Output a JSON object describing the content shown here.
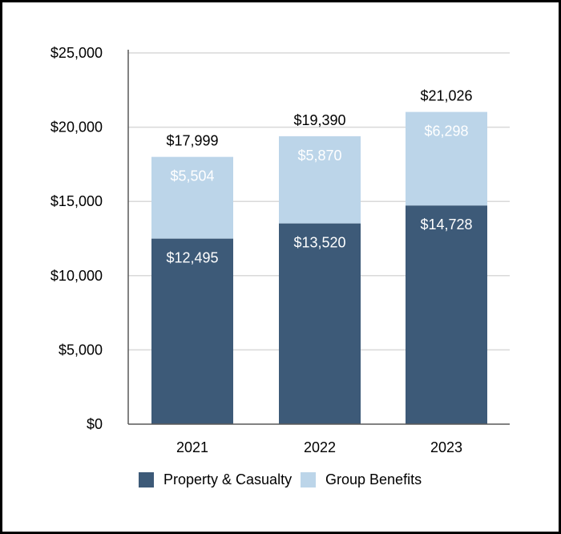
{
  "chart_data": {
    "type": "bar",
    "stacked": true,
    "categories": [
      "2021",
      "2022",
      "2023"
    ],
    "series": [
      {
        "name": "Property & Casualty",
        "values": [
          12495,
          13520,
          14728
        ],
        "labels": [
          "$12,495",
          "$13,520",
          "$14,728"
        ],
        "color": "#3d5a78",
        "label_color": "#ffffff"
      },
      {
        "name": "Group Benefits",
        "values": [
          5504,
          5870,
          6298
        ],
        "labels": [
          "$5,504",
          "$5,870",
          "$6,298"
        ],
        "color": "#bcd5e9",
        "label_color": "#ffffff"
      }
    ],
    "totals": [
      17999,
      19390,
      21026
    ],
    "total_labels": [
      "$17,999",
      "$19,390",
      "$21,026"
    ],
    "yticks": [
      0,
      5000,
      10000,
      15000,
      20000,
      25000
    ],
    "ytick_labels": [
      "$0",
      "$5,000",
      "$10,000",
      "$15,000",
      "$20,000",
      "$25,000"
    ],
    "ylim": [
      0,
      25000
    ],
    "grid": true,
    "legend_position": "bottom",
    "title": "",
    "xlabel": "",
    "ylabel": ""
  }
}
